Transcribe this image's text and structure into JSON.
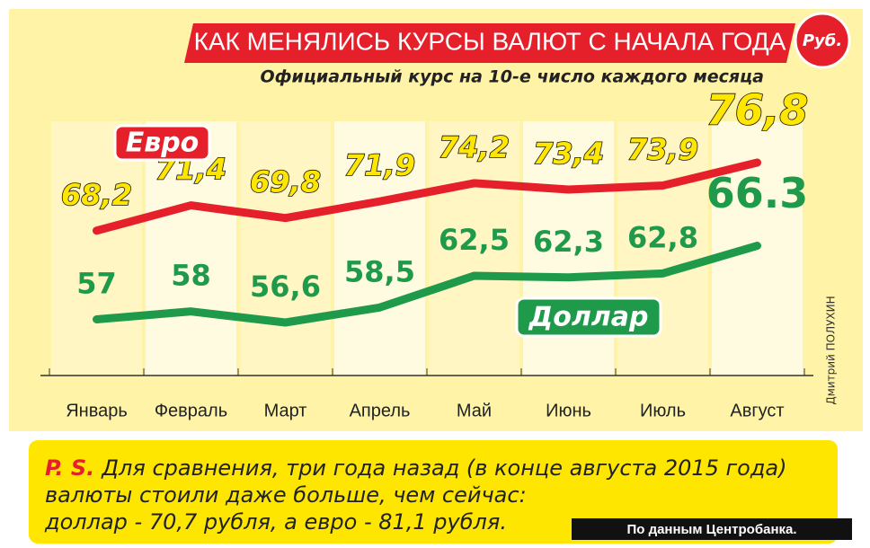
{
  "chart_data": {
    "type": "line",
    "title": "КАК МЕНЯЛИСЬ КУРСЫ ВАЛЮТ С НАЧАЛА ГОДА",
    "unit_badge": "Руб.",
    "subtitle": "Официальный курс на 10-е число каждого месяца",
    "categories": [
      "Январь",
      "Февраль",
      "Март",
      "Апрель",
      "Май",
      "Июнь",
      "Июль",
      "Август"
    ],
    "series": [
      {
        "name": "Евро",
        "color": "#e5202a",
        "label_color": "#ffe600",
        "values": [
          68.2,
          71.4,
          69.8,
          71.9,
          74.2,
          73.4,
          73.9,
          76.8
        ],
        "value_labels": [
          "68,2",
          "71,4",
          "69,8",
          "71,9",
          "74,2",
          "73,4",
          "73,9",
          "76,8"
        ]
      },
      {
        "name": "Доллар",
        "color": "#1f9a4b",
        "label_color": "#1f9a4b",
        "values": [
          57,
          58,
          56.6,
          58.5,
          62.5,
          62.3,
          62.8,
          66.3
        ],
        "value_labels": [
          "57",
          "58",
          "56,6",
          "58,5",
          "62,5",
          "62,3",
          "62,8",
          "66.3"
        ]
      }
    ],
    "author": "Дмитрий ПОЛУХИН",
    "note": {
      "label": "P. S.",
      "lines": [
        "Для сравнения, три года назад (в конце августа 2015 года)",
        "валюты стоили даже больше, чем сейчас:",
        "доллар - 70,7 рубля, а евро - 81,1 рубля."
      ]
    },
    "source": "По данным Центробанка."
  }
}
